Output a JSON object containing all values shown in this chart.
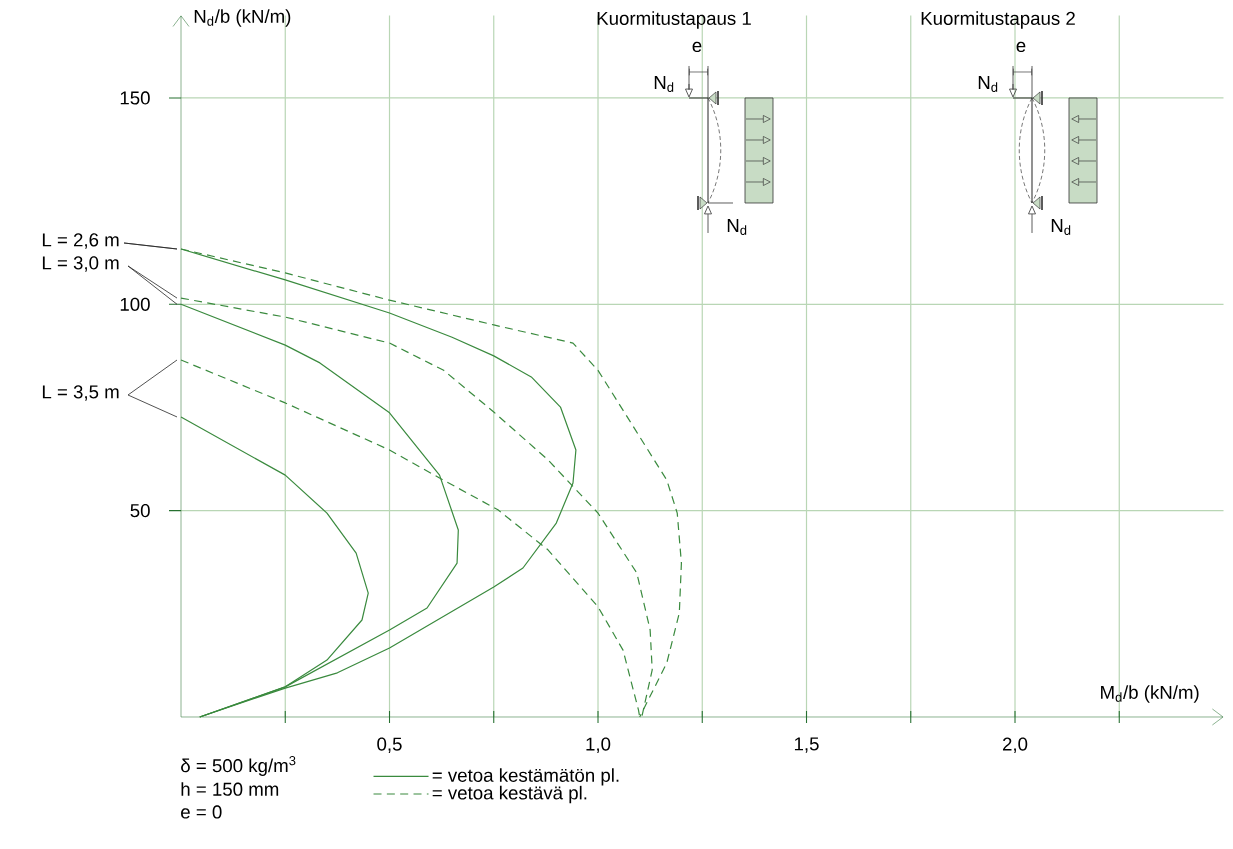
{
  "chart_data": {
    "type": "line",
    "xlabel": "M$_{d}$/b (kN/m)",
    "ylabel": "N$_{d}$/b (kN/m)",
    "xlim": [
      0,
      2.5
    ],
    "ylim": [
      0,
      170
    ],
    "xticks": [
      {
        "value": 0.25,
        "label": null
      },
      {
        "value": 0.5,
        "label": "0,5"
      },
      {
        "value": 0.75,
        "label": null
      },
      {
        "value": 1.0,
        "label": "1,0"
      },
      {
        "value": 1.25,
        "label": null
      },
      {
        "value": 1.5,
        "label": "1,5"
      },
      {
        "value": 1.75,
        "label": null
      },
      {
        "value": 2.0,
        "label": "2,0"
      },
      {
        "value": 2.25,
        "label": null
      }
    ],
    "yticks": [
      50,
      100,
      150
    ],
    "grid": true,
    "legend": "bottom left",
    "series": [
      {
        "name": "= vetoa kestämätön pl.",
        "color": "#3a8a3e",
        "line_style": "solid",
        "x": [
          0,
          0.25,
          0.5,
          0.65,
          0.75,
          0.84,
          0.91,
          0.947,
          0.94,
          0.9,
          0.82,
          0.75,
          0.5,
          0.375,
          0.25,
          0.045
        ],
        "values": [
          113.4,
          105.9,
          97.9,
          92,
          87.5,
          82.4,
          75.1,
          64.7,
          56.7,
          47,
          36.1,
          31.5,
          16.7,
          10.7,
          7,
          0
        ]
      },
      {
        "color": "#3a8a3e",
        "line_style": "solid",
        "x": [
          0,
          0.25,
          0.333,
          0.5,
          0.62,
          0.665,
          0.662,
          0.59,
          0.5,
          0.25,
          0.045
        ],
        "values": [
          100,
          90.1,
          85.8,
          73.7,
          58.6,
          45.3,
          37.3,
          26.4,
          21.1,
          7.3,
          0
        ]
      },
      {
        "color": "#3a8a3e",
        "line_style": "solid",
        "x": [
          0,
          0.25,
          0.35,
          0.42,
          0.449,
          0.434,
          0.35,
          0.25,
          0.045
        ],
        "values": [
          72.7,
          58.6,
          49.4,
          39.7,
          30,
          23.5,
          13.8,
          7.3,
          0
        ]
      },
      {
        "name": "= vetoa kestävä pl.",
        "color": "#3a8a3e",
        "line_style": "dashed",
        "x": [
          0,
          0.25,
          0.5,
          0.75,
          0.94,
          1.0,
          1.09,
          1.165,
          1.19,
          1.2,
          1.195,
          1.165,
          1.1
        ],
        "values": [
          113.4,
          107.6,
          101,
          95,
          90.6,
          84,
          69.5,
          57.4,
          49.4,
          37.3,
          25.2,
          13.1,
          0
        ]
      },
      {
        "color": "#3a8a3e",
        "line_style": "dashed",
        "x": [
          0,
          0.25,
          0.5,
          0.63,
          0.75,
          0.88,
          1.0,
          1.093,
          1.125,
          1.13,
          1.105
        ],
        "values": [
          101.5,
          96.9,
          90.6,
          84,
          73.9,
          62.3,
          49.4,
          34.9,
          21.1,
          11.4,
          0
        ]
      },
      {
        "color": "#3a8a3e",
        "line_style": "dashed",
        "x": [
          0,
          0.25,
          0.5,
          0.62,
          0.76,
          0.88,
          1.0,
          1.06,
          1.097,
          1.1
        ],
        "values": [
          86.5,
          76.1,
          64.7,
          57.9,
          50.2,
          40.5,
          26.7,
          16.2,
          1.7,
          0
        ]
      }
    ],
    "annotations": [
      "Kuormitustapaus 1",
      "e",
      "N$_{d}$",
      "N$_{d}$",
      "Kuormitustapaus 2",
      "e",
      "N$_{d}$",
      "N$_{d}$",
      "δ = 500 kg/m$^{3}$",
      "h = 150 mm",
      "e = 0",
      "L = 2,6 m",
      "L = 3,0 m",
      "L = 3,5 m"
    ]
  }
}
